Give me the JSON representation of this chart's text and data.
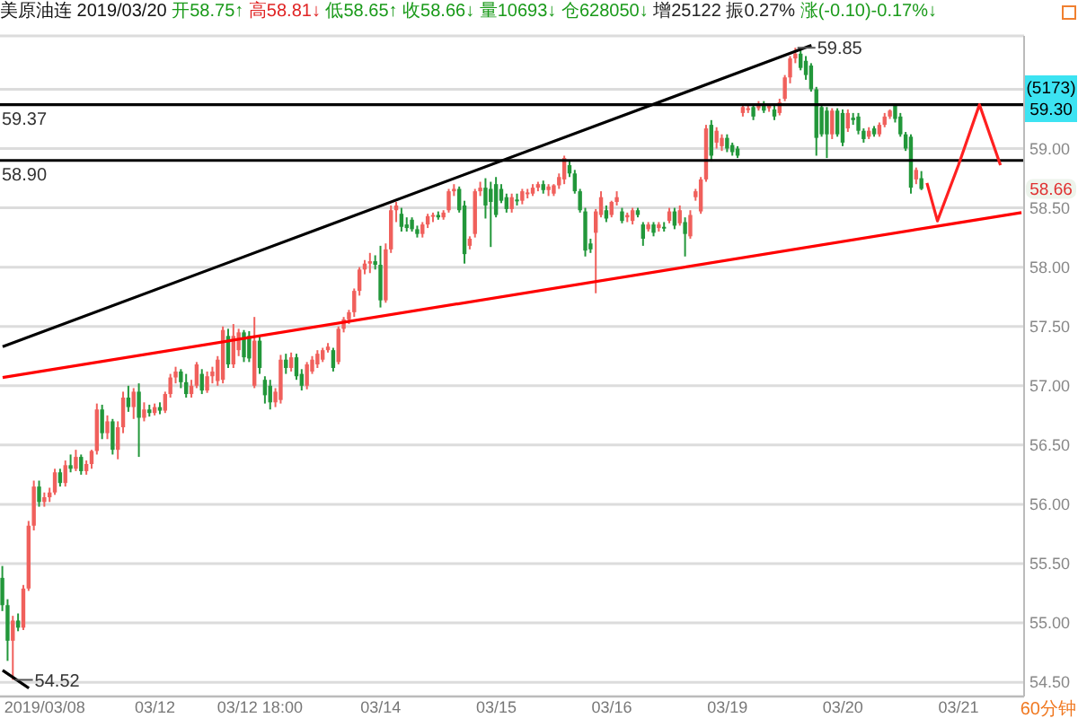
{
  "chart_data": {
    "type": "candlestick",
    "title": "美原油连 2019/03/20",
    "subtitle": "开58.75↑ 高58.81↓ 低58.65↑ 收58.66↓ 量10693↓ 仓628050↓ 增25122 振0.27% 涨(-0.10)-0.17%↓",
    "categories": [
      null,
      null,
      null,
      null,
      null,
      null,
      null,
      null,
      "2019/03/08",
      null,
      null,
      null,
      null,
      null,
      null,
      null,
      null,
      null,
      null,
      null,
      null,
      null,
      null,
      null,
      null,
      null,
      null,
      null,
      null,
      "03/12",
      null,
      null,
      null,
      null,
      null,
      null,
      null,
      null,
      null,
      null,
      null,
      null,
      null,
      null,
      null,
      null,
      null,
      null,
      null,
      "03/12 18:00",
      null,
      null,
      null,
      null,
      null,
      null,
      null,
      null,
      null,
      null,
      null,
      null,
      null,
      null,
      null,
      null,
      null,
      null,
      null,
      null,
      null,
      null,
      "03/14",
      null,
      null,
      null,
      null,
      null,
      null,
      null,
      null,
      null,
      null,
      null,
      null,
      null,
      null,
      null,
      null,
      null,
      null,
      null,
      null,
      null,
      "03/15",
      null,
      null,
      null,
      null,
      null,
      null,
      null,
      null,
      null,
      null,
      null,
      null,
      null,
      null,
      null,
      null,
      null,
      null,
      null,
      null,
      null,
      "03/16",
      null,
      null,
      null,
      null,
      null,
      null,
      null,
      null,
      null,
      null,
      null,
      null,
      null,
      null,
      null,
      null,
      null,
      null,
      null,
      null,
      null,
      "03/19",
      null,
      null,
      null,
      null,
      null,
      null,
      null,
      null,
      null,
      null,
      null,
      null,
      null,
      null,
      null,
      null,
      null,
      null,
      null,
      null,
      null,
      "03/20",
      null,
      null,
      null,
      null,
      null,
      null,
      null,
      null,
      null,
      null,
      null,
      null,
      null,
      null,
      null,
      null,
      null,
      null,
      null,
      null,
      null,
      "03/21",
      null,
      null,
      null,
      null,
      null,
      null,
      null,
      null,
      null,
      null,
      null,
      null
    ],
    "ohlc": [
      [
        55.38,
        55.48,
        55.1,
        55.15
      ],
      [
        55.15,
        55.2,
        54.68,
        54.85
      ],
      [
        54.85,
        55.06,
        54.52,
        55.02
      ],
      [
        55.02,
        55.08,
        54.93,
        54.96
      ],
      [
        54.96,
        55.32,
        54.94,
        55.29
      ],
      [
        55.29,
        55.86,
        55.27,
        55.82
      ],
      [
        55.82,
        56.2,
        55.78,
        56.15
      ],
      [
        56.15,
        56.2,
        55.98,
        56.02
      ],
      [
        56.02,
        56.1,
        55.98,
        56.06
      ],
      [
        56.06,
        56.14,
        56.02,
        56.1
      ],
      [
        56.1,
        56.3,
        56.08,
        56.27
      ],
      [
        56.27,
        56.3,
        56.15,
        56.18
      ],
      [
        56.18,
        56.37,
        56.15,
        56.33
      ],
      [
        56.33,
        56.42,
        56.27,
        56.3
      ],
      [
        56.3,
        56.46,
        56.28,
        56.4
      ],
      [
        56.4,
        56.42,
        56.25,
        56.28
      ],
      [
        56.28,
        56.37,
        56.25,
        56.34
      ],
      [
        56.34,
        56.46,
        56.3,
        56.45
      ],
      [
        56.45,
        56.85,
        56.42,
        56.8
      ],
      [
        56.8,
        56.84,
        56.55,
        56.6
      ],
      [
        56.6,
        56.75,
        56.55,
        56.7
      ],
      [
        56.7,
        56.72,
        56.42,
        56.46
      ],
      [
        56.46,
        56.7,
        56.38,
        56.65
      ],
      [
        56.65,
        56.95,
        56.6,
        56.9
      ],
      [
        56.9,
        57.0,
        56.78,
        56.82
      ],
      [
        56.82,
        56.98,
        56.72,
        56.95
      ],
      [
        56.95,
        57.02,
        56.4,
        56.73
      ],
      [
        56.73,
        56.86,
        56.7,
        56.8
      ],
      [
        56.8,
        56.84,
        56.74,
        56.77
      ],
      [
        56.77,
        56.85,
        56.75,
        56.82
      ],
      [
        56.82,
        56.86,
        56.76,
        56.79
      ],
      [
        56.79,
        56.95,
        56.77,
        56.93
      ],
      [
        56.93,
        57.1,
        56.9,
        57.07
      ],
      [
        57.07,
        57.16,
        57.02,
        57.12
      ],
      [
        57.12,
        57.14,
        56.98,
        57.03
      ],
      [
        57.03,
        57.1,
        56.9,
        56.93
      ],
      [
        56.93,
        57.05,
        56.9,
        57.0
      ],
      [
        57.0,
        57.2,
        56.98,
        57.18
      ],
      [
        57.1,
        57.14,
        56.93,
        56.96
      ],
      [
        56.96,
        57.12,
        56.94,
        57.08
      ],
      [
        57.08,
        57.16,
        57.02,
        57.12
      ],
      [
        57.04,
        57.25,
        57.0,
        57.22
      ],
      [
        57.05,
        57.5,
        57.02,
        57.47
      ],
      [
        57.42,
        57.48,
        57.15,
        57.18
      ],
      [
        57.18,
        57.52,
        57.15,
        57.42
      ],
      [
        57.3,
        57.48,
        57.25,
        57.45
      ],
      [
        57.45,
        57.47,
        57.2,
        57.24
      ],
      [
        57.42,
        57.46,
        57.2,
        57.23
      ],
      [
        57.0,
        57.58,
        56.98,
        57.38
      ],
      [
        57.38,
        57.42,
        57.1,
        57.15
      ],
      [
        57.05,
        57.08,
        56.85,
        56.92
      ],
      [
        57.0,
        57.05,
        56.8,
        56.86
      ],
      [
        56.86,
        56.98,
        56.82,
        56.95
      ],
      [
        56.88,
        57.26,
        56.85,
        57.22
      ],
      [
        57.22,
        57.27,
        57.1,
        57.15
      ],
      [
        57.15,
        57.28,
        57.12,
        57.24
      ],
      [
        57.24,
        57.27,
        57.05,
        57.08
      ],
      [
        57.1,
        57.14,
        56.96,
        57.0
      ],
      [
        57.0,
        57.2,
        56.97,
        57.18
      ],
      [
        57.12,
        57.25,
        57.1,
        57.22
      ],
      [
        57.18,
        57.3,
        57.15,
        57.27
      ],
      [
        57.22,
        57.32,
        57.2,
        57.3
      ],
      [
        57.3,
        57.36,
        57.28,
        57.33
      ],
      [
        57.3,
        57.32,
        57.12,
        57.15
      ],
      [
        57.2,
        57.5,
        57.18,
        57.48
      ],
      [
        57.48,
        57.58,
        57.45,
        57.56
      ],
      [
        57.56,
        57.64,
        57.52,
        57.62
      ],
      [
        57.62,
        57.82,
        57.58,
        57.8
      ],
      [
        57.8,
        58.0,
        57.76,
        57.98
      ],
      [
        57.98,
        58.06,
        57.94,
        58.03
      ],
      [
        58.03,
        58.12,
        57.95,
        58.05
      ],
      [
        58.05,
        58.1,
        57.98,
        58.02
      ],
      [
        58.02,
        58.18,
        57.66,
        57.72
      ],
      [
        57.72,
        58.2,
        57.7,
        58.15
      ],
      [
        58.15,
        58.52,
        58.12,
        58.48
      ],
      [
        58.48,
        58.55,
        58.38,
        58.52
      ],
      [
        58.45,
        58.5,
        58.3,
        58.34
      ],
      [
        58.36,
        58.42,
        58.3,
        58.33
      ],
      [
        58.4,
        58.42,
        58.3,
        58.32
      ],
      [
        58.32,
        58.35,
        58.25,
        58.28
      ],
      [
        58.28,
        58.38,
        58.25,
        58.36
      ],
      [
        58.36,
        58.45,
        58.33,
        58.43
      ],
      [
        58.43,
        58.46,
        58.38,
        58.44
      ],
      [
        58.44,
        58.47,
        58.4,
        58.42
      ],
      [
        58.42,
        58.48,
        58.4,
        58.46
      ],
      [
        58.48,
        58.66,
        58.46,
        58.64
      ],
      [
        58.64,
        58.7,
        58.6,
        58.66
      ],
      [
        58.66,
        58.68,
        58.46,
        58.48
      ],
      [
        58.52,
        58.56,
        58.03,
        58.11
      ],
      [
        58.18,
        58.26,
        58.15,
        58.24
      ],
      [
        58.28,
        58.66,
        58.25,
        58.64
      ],
      [
        58.64,
        58.72,
        58.6,
        58.67
      ],
      [
        58.67,
        58.75,
        58.41,
        58.52
      ],
      [
        58.66,
        58.72,
        58.17,
        58.55
      ],
      [
        58.7,
        58.76,
        58.42,
        58.44
      ],
      [
        58.66,
        58.7,
        58.54,
        58.56
      ],
      [
        58.59,
        58.62,
        58.46,
        58.49
      ],
      [
        58.49,
        58.62,
        58.46,
        58.59
      ],
      [
        58.57,
        58.62,
        58.52,
        58.56
      ],
      [
        58.56,
        58.66,
        58.53,
        58.64
      ],
      [
        58.62,
        58.66,
        58.58,
        58.63
      ],
      [
        58.62,
        58.7,
        58.6,
        58.67
      ],
      [
        58.67,
        58.72,
        58.64,
        58.7
      ],
      [
        58.7,
        58.73,
        58.62,
        58.65
      ],
      [
        58.65,
        58.7,
        58.6,
        58.68
      ],
      [
        58.62,
        58.7,
        58.6,
        58.69
      ],
      [
        58.69,
        58.79,
        58.66,
        58.76
      ],
      [
        58.74,
        58.94,
        58.7,
        58.92
      ],
      [
        58.86,
        58.9,
        58.76,
        58.79
      ],
      [
        58.79,
        58.82,
        58.62,
        58.64
      ],
      [
        58.64,
        58.66,
        58.46,
        58.48
      ],
      [
        58.47,
        58.5,
        58.09,
        58.14
      ],
      [
        58.2,
        58.24,
        58.12,
        58.15
      ],
      [
        58.29,
        58.49,
        57.78,
        58.47
      ],
      [
        58.44,
        58.64,
        58.42,
        58.59
      ],
      [
        58.48,
        58.52,
        58.38,
        58.41
      ],
      [
        58.44,
        58.56,
        58.42,
        58.55
      ],
      [
        58.55,
        58.64,
        58.52,
        58.59
      ],
      [
        58.47,
        58.5,
        58.37,
        58.39
      ],
      [
        58.42,
        58.46,
        58.38,
        58.44
      ],
      [
        58.39,
        58.5,
        58.36,
        58.48
      ],
      [
        58.48,
        58.5,
        58.42,
        58.44
      ],
      [
        58.36,
        58.38,
        58.18,
        58.24
      ],
      [
        58.32,
        58.38,
        58.3,
        58.36
      ],
      [
        58.36,
        58.38,
        58.26,
        58.29
      ],
      [
        58.33,
        58.38,
        58.3,
        58.36
      ],
      [
        58.34,
        58.38,
        58.3,
        58.33
      ],
      [
        58.39,
        58.5,
        58.37,
        58.47
      ],
      [
        58.47,
        58.5,
        58.32,
        58.35
      ],
      [
        58.37,
        58.52,
        58.35,
        58.48
      ],
      [
        58.38,
        58.42,
        58.09,
        58.28
      ],
      [
        58.26,
        58.48,
        58.24,
        58.44
      ],
      [
        58.59,
        58.66,
        58.56,
        58.64
      ],
      [
        58.47,
        58.76,
        58.45,
        58.74
      ],
      [
        58.74,
        59.2,
        58.72,
        59.17
      ],
      [
        59.2,
        59.24,
        58.89,
        58.94
      ],
      [
        59.05,
        59.18,
        59.0,
        59.15
      ],
      [
        59.02,
        59.12,
        58.98,
        59.09
      ],
      [
        59.09,
        59.12,
        58.97,
        59.0
      ],
      [
        59.03,
        59.05,
        58.94,
        58.97
      ],
      [
        59.0,
        59.02,
        58.92,
        58.94
      ],
      [
        59.3,
        59.38,
        59.27,
        59.35
      ],
      [
        59.33,
        59.38,
        59.3,
        59.34
      ],
      [
        59.35,
        59.38,
        59.24,
        59.27
      ],
      [
        59.34,
        59.4,
        59.32,
        59.38
      ],
      [
        59.38,
        59.4,
        59.3,
        59.32
      ],
      [
        59.34,
        59.38,
        59.31,
        59.36
      ],
      [
        59.33,
        59.36,
        59.24,
        59.27
      ],
      [
        59.3,
        59.42,
        59.28,
        59.39
      ],
      [
        59.42,
        59.62,
        59.4,
        59.6
      ],
      [
        59.6,
        59.78,
        59.55,
        59.76
      ],
      [
        59.76,
        59.85,
        59.72,
        59.8
      ],
      [
        59.8,
        59.83,
        59.66,
        59.68
      ],
      [
        59.74,
        59.78,
        59.58,
        59.62
      ],
      [
        59.7,
        59.72,
        59.48,
        59.5
      ],
      [
        59.5,
        59.52,
        58.94,
        59.09
      ],
      [
        59.35,
        59.38,
        59.1,
        59.12
      ],
      [
        59.32,
        59.35,
        58.92,
        59.12
      ],
      [
        59.12,
        59.34,
        59.08,
        59.32
      ],
      [
        59.32,
        59.34,
        59.1,
        59.12
      ],
      [
        59.3,
        59.33,
        59.02,
        59.05
      ],
      [
        59.17,
        59.33,
        59.14,
        59.3
      ],
      [
        59.26,
        59.3,
        59.2,
        59.24
      ],
      [
        59.27,
        59.3,
        59.12,
        59.15
      ],
      [
        59.15,
        59.17,
        59.05,
        59.08
      ],
      [
        59.1,
        59.18,
        59.08,
        59.15
      ],
      [
        59.17,
        59.19,
        59.1,
        59.12
      ],
      [
        59.12,
        59.22,
        59.1,
        59.2
      ],
      [
        59.2,
        59.3,
        59.18,
        59.27
      ],
      [
        59.27,
        59.33,
        59.25,
        59.32
      ],
      [
        59.36,
        59.37,
        59.22,
        59.25
      ],
      [
        59.27,
        59.3,
        59.1,
        59.12
      ],
      [
        59.12,
        59.14,
        58.98,
        59.0
      ],
      [
        59.1,
        59.12,
        58.62,
        58.67
      ],
      [
        58.74,
        58.84,
        58.7,
        58.82
      ],
      [
        58.75,
        58.81,
        58.65,
        58.66
      ],
      null,
      null,
      null,
      null,
      null,
      null,
      null,
      null,
      null,
      null,
      null,
      null,
      null,
      null,
      null,
      null,
      null,
      null,
      null
    ],
    "series": [
      {
        "type": "line",
        "color": "#000000",
        "values": [
          57.33,
          null,
          null,
          null,
          null,
          null,
          null,
          null,
          null,
          null,
          null,
          null,
          null,
          null,
          null,
          null,
          null,
          null,
          null,
          null,
          null,
          null,
          null,
          null,
          null,
          null,
          null,
          null,
          null,
          null,
          null,
          null,
          null,
          null,
          null,
          null,
          null,
          null,
          null,
          null,
          null,
          null,
          null,
          null,
          null,
          null,
          null,
          null,
          null,
          null,
          null,
          null,
          null,
          null,
          null,
          null,
          null,
          null,
          null,
          null,
          null,
          null,
          null,
          null,
          null,
          null,
          null,
          null,
          null,
          null,
          null,
          null,
          null,
          null,
          null,
          null,
          null,
          null,
          null,
          null,
          null,
          null,
          null,
          null,
          null,
          null,
          null,
          null,
          null,
          null,
          null,
          null,
          null,
          null,
          null,
          null,
          null,
          null,
          null,
          null,
          null,
          null,
          null,
          null,
          null,
          null,
          null,
          null,
          null,
          null,
          null,
          null,
          null,
          null,
          null,
          null,
          null,
          null,
          null,
          null,
          null,
          null,
          null,
          null,
          null,
          null,
          null,
          null,
          null,
          null,
          null,
          null,
          null,
          null,
          null,
          null,
          null,
          null,
          null,
          null,
          null,
          null,
          null,
          null,
          null,
          null,
          null,
          null,
          null,
          null,
          null,
          null,
          null,
          null,
          59.87,
          null,
          null,
          null,
          null,
          null,
          null,
          null,
          null,
          null,
          null,
          null,
          null,
          null,
          null,
          null,
          null,
          null,
          null,
          null,
          null,
          null,
          null,
          null,
          null,
          null,
          null,
          null,
          null,
          null,
          null,
          null,
          null,
          null,
          null,
          null,
          null,
          null,
          null,
          null,
          null
        ]
      },
      {
        "type": "line",
        "color": "#ff0000",
        "values": [
          57.07,
          null,
          null,
          null,
          null,
          null,
          null,
          null,
          null,
          null,
          null,
          null,
          null,
          null,
          null,
          null,
          null,
          null,
          null,
          null,
          null,
          null,
          null,
          null,
          null,
          null,
          null,
          null,
          null,
          null,
          null,
          null,
          null,
          null,
          null,
          null,
          null,
          null,
          null,
          null,
          null,
          null,
          null,
          null,
          null,
          null,
          null,
          null,
          null,
          null,
          null,
          null,
          null,
          null,
          null,
          null,
          null,
          null,
          null,
          null,
          null,
          null,
          null,
          null,
          null,
          null,
          null,
          null,
          null,
          null,
          null,
          null,
          null,
          null,
          null,
          null,
          null,
          null,
          null,
          null,
          null,
          null,
          null,
          null,
          null,
          null,
          null,
          null,
          null,
          null,
          null,
          null,
          null,
          null,
          null,
          null,
          null,
          null,
          null,
          null,
          null,
          null,
          null,
          null,
          null,
          null,
          null,
          null,
          null,
          null,
          null,
          null,
          null,
          null,
          null,
          null,
          null,
          null,
          null,
          null,
          null,
          null,
          null,
          null,
          null,
          null,
          null,
          null,
          null,
          null,
          null,
          null,
          null,
          null,
          null,
          null,
          null,
          null,
          null,
          null,
          null,
          null,
          null,
          null,
          null,
          null,
          null,
          null,
          null,
          null,
          null,
          null,
          null,
          null,
          null,
          null,
          null,
          null,
          null,
          null,
          null,
          null,
          null,
          null,
          null,
          null,
          null,
          null,
          null,
          null,
          null,
          null,
          null,
          null,
          null,
          null,
          null,
          null,
          null,
          null,
          null,
          null,
          null,
          null,
          null,
          null,
          null,
          null,
          null,
          null,
          null,
          null,
          null,
          null,
          58.46
        ]
      },
      {
        "type": "line",
        "color": "#000000",
        "values": [
          54.6,
          null,
          null,
          null,
          null,
          54.45,
          null,
          null,
          null,
          null,
          null,
          null,
          null,
          null,
          null,
          null,
          null,
          null,
          null,
          null,
          null,
          null,
          null,
          null,
          null,
          null,
          null,
          null,
          null,
          null,
          null,
          null,
          null,
          null,
          null,
          null,
          null,
          null,
          null,
          null,
          null,
          null,
          null,
          null,
          null,
          null,
          null,
          null,
          null,
          null,
          null,
          null,
          null,
          null,
          null,
          null,
          null,
          null,
          null,
          null,
          null,
          null,
          null,
          null,
          null,
          null,
          null,
          null,
          null,
          null,
          null,
          null,
          null,
          null,
          null,
          null,
          null,
          null,
          null,
          null,
          null,
          null,
          null,
          null,
          null,
          null,
          null,
          null,
          null,
          null,
          null,
          null,
          null,
          null,
          null,
          null,
          null,
          null,
          null,
          null,
          null,
          null,
          null,
          null,
          null,
          null,
          null,
          null,
          null,
          null,
          null,
          null,
          null,
          null,
          null,
          null,
          null,
          null,
          null,
          null,
          null,
          null,
          null,
          null,
          null,
          null,
          null,
          null,
          null,
          null,
          null,
          null,
          null,
          null,
          null,
          null,
          null,
          null,
          null,
          null,
          null,
          null,
          null,
          null,
          null,
          null,
          null,
          null,
          null,
          null,
          null,
          null,
          null,
          null,
          null,
          null,
          null,
          null,
          null,
          null,
          null,
          null,
          null,
          null,
          null,
          null,
          null,
          null,
          null,
          null,
          null,
          null,
          null,
          null,
          null,
          null,
          null,
          null,
          null,
          null,
          null,
          null,
          null,
          null,
          null,
          null,
          null,
          null,
          null,
          null,
          null,
          null,
          null,
          null,
          null
        ]
      },
      {
        "type": "line",
        "color": "#ff2020",
        "values": [
          null,
          null,
          null,
          null,
          null,
          null,
          null,
          null,
          null,
          null,
          null,
          null,
          null,
          null,
          null,
          null,
          null,
          null,
          null,
          null,
          null,
          null,
          null,
          null,
          null,
          null,
          null,
          null,
          null,
          null,
          null,
          null,
          null,
          null,
          null,
          null,
          null,
          null,
          null,
          null,
          null,
          null,
          null,
          null,
          null,
          null,
          null,
          null,
          null,
          null,
          null,
          null,
          null,
          null,
          null,
          null,
          null,
          null,
          null,
          null,
          null,
          null,
          null,
          null,
          null,
          null,
          null,
          null,
          null,
          null,
          null,
          null,
          null,
          null,
          null,
          null,
          null,
          null,
          null,
          null,
          null,
          null,
          null,
          null,
          null,
          null,
          null,
          null,
          null,
          null,
          null,
          null,
          null,
          null,
          null,
          null,
          null,
          null,
          null,
          null,
          null,
          null,
          null,
          null,
          null,
          null,
          null,
          null,
          null,
          null,
          null,
          null,
          null,
          null,
          null,
          null,
          null,
          null,
          null,
          null,
          null,
          null,
          null,
          null,
          null,
          null,
          null,
          null,
          null,
          null,
          null,
          null,
          null,
          null,
          null,
          null,
          null,
          null,
          null,
          null,
          null,
          null,
          null,
          null,
          null,
          null,
          null,
          null,
          null,
          null,
          null,
          null,
          null,
          null,
          null,
          null,
          null,
          null,
          null,
          null,
          null,
          null,
          null,
          null,
          null,
          null,
          null,
          null,
          null,
          null,
          null,
          null,
          null,
          null,
          null,
          null,
          58.71,
          null,
          58.39,
          null,
          null,
          null,
          58.86,
          null,
          null,
          null,
          59.37,
          null,
          null,
          null,
          58.86,
          null,
          null,
          null,
          null
        ]
      }
    ],
    "ylim": [
      54.38,
      59.95
    ],
    "yticks": [
      {
        "value": 54.5,
        "label": "54.50"
      },
      {
        "value": 55,
        "label": "55.00"
      },
      {
        "value": 55.5,
        "label": "55.50"
      },
      {
        "value": 56,
        "label": "56.00"
      },
      {
        "value": 56.5,
        "label": "56.50"
      },
      {
        "value": 57,
        "label": "57.00"
      },
      {
        "value": 57.5,
        "label": "57.50"
      },
      {
        "value": 58,
        "label": "58.00"
      },
      {
        "value": 58.5,
        "label": "58.50"
      },
      {
        "value": 59,
        "label": "59.00"
      },
      {
        "value": 59.5,
        "label": null
      }
    ],
    "grid": "y",
    "ref_lines": [
      {
        "axis": "y",
        "value": 59.37,
        "label": "59.37",
        "color": "#000000"
      },
      {
        "axis": "y",
        "value": 58.9,
        "label": "58.90",
        "color": "#000000"
      }
    ],
    "annotations": [
      "59.85",
      "54.52",
      "(5173) 59.30",
      {
        "text": "58.66",
        "y": 58.66
      },
      "60分钟"
    ]
  }
}
